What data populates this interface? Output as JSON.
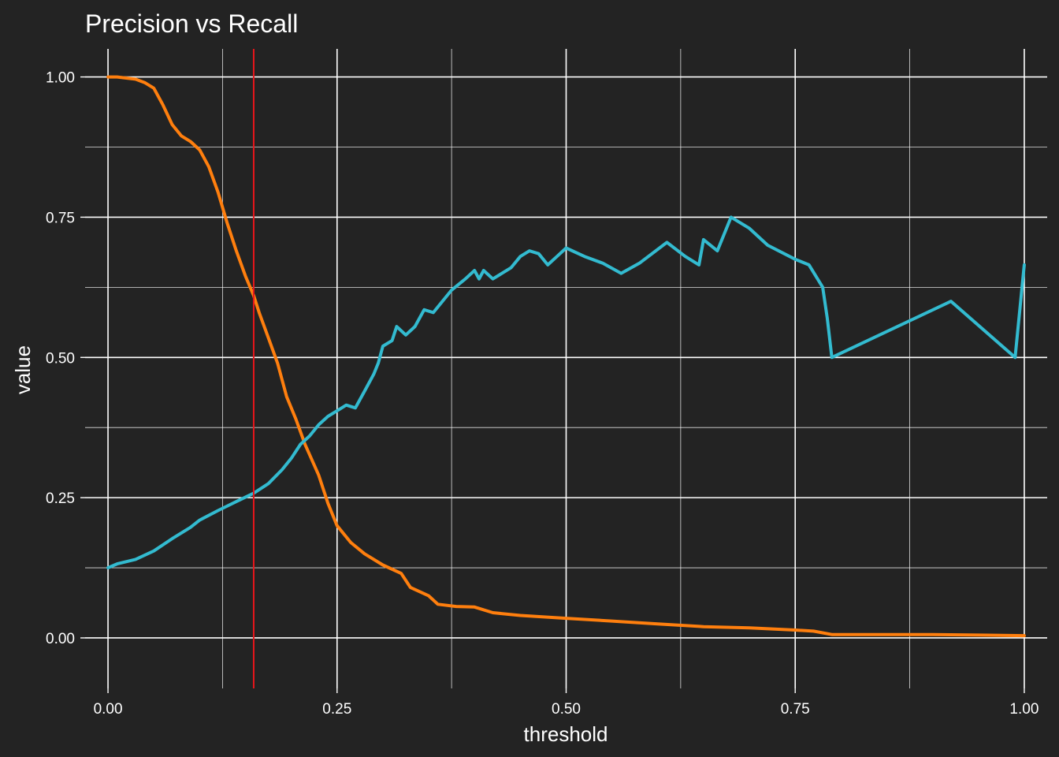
{
  "chart_data": {
    "type": "line",
    "title": "Precision vs Recall",
    "xlabel": "threshold",
    "ylabel": "value",
    "xlim": [
      -0.025,
      1.025
    ],
    "ylim": [
      -0.09,
      1.05
    ],
    "x_ticks": [
      0,
      0.25,
      0.5,
      0.75,
      1
    ],
    "x_tick_labels": [
      "0.00",
      "0.25",
      "0.50",
      "0.75",
      "1.00"
    ],
    "y_ticks": [
      0,
      0.25,
      0.5,
      0.75,
      1
    ],
    "y_tick_labels": [
      "0.00",
      "0.25",
      "0.50",
      "0.75",
      "1.00"
    ],
    "x_minor": [
      0.125,
      0.375,
      0.625,
      0.875
    ],
    "y_minor": [
      0.125,
      0.375,
      0.625,
      0.875
    ],
    "grid": true,
    "legend": "none",
    "background_color": "#232323",
    "vline": {
      "x": 0.159,
      "color": "#e8161b"
    },
    "series": [
      {
        "color": "#ff7f0e",
        "points": [
          [
            0.0,
            1.0
          ],
          [
            0.01,
            1.0
          ],
          [
            0.02,
            0.998
          ],
          [
            0.03,
            0.996
          ],
          [
            0.04,
            0.99
          ],
          [
            0.05,
            0.98
          ],
          [
            0.06,
            0.95
          ],
          [
            0.07,
            0.915
          ],
          [
            0.08,
            0.895
          ],
          [
            0.09,
            0.885
          ],
          [
            0.1,
            0.87
          ],
          [
            0.11,
            0.84
          ],
          [
            0.12,
            0.795
          ],
          [
            0.13,
            0.74
          ],
          [
            0.14,
            0.69
          ],
          [
            0.15,
            0.645
          ],
          [
            0.159,
            0.61
          ],
          [
            0.165,
            0.58
          ],
          [
            0.175,
            0.535
          ],
          [
            0.185,
            0.49
          ],
          [
            0.195,
            0.43
          ],
          [
            0.205,
            0.39
          ],
          [
            0.215,
            0.345
          ],
          [
            0.23,
            0.29
          ],
          [
            0.24,
            0.24
          ],
          [
            0.25,
            0.2
          ],
          [
            0.265,
            0.17
          ],
          [
            0.28,
            0.15
          ],
          [
            0.3,
            0.13
          ],
          [
            0.32,
            0.115
          ],
          [
            0.33,
            0.09
          ],
          [
            0.35,
            0.075
          ],
          [
            0.36,
            0.06
          ],
          [
            0.38,
            0.056
          ],
          [
            0.4,
            0.055
          ],
          [
            0.42,
            0.045
          ],
          [
            0.45,
            0.04
          ],
          [
            0.5,
            0.035
          ],
          [
            0.55,
            0.03
          ],
          [
            0.6,
            0.025
          ],
          [
            0.65,
            0.02
          ],
          [
            0.7,
            0.018
          ],
          [
            0.75,
            0.014
          ],
          [
            0.77,
            0.012
          ],
          [
            0.79,
            0.006
          ],
          [
            0.85,
            0.006
          ],
          [
            0.9,
            0.006
          ],
          [
            0.95,
            0.005
          ],
          [
            1.0,
            0.004
          ]
        ]
      },
      {
        "color": "#33bbd0",
        "points": [
          [
            0.0,
            0.125
          ],
          [
            0.01,
            0.132
          ],
          [
            0.03,
            0.14
          ],
          [
            0.05,
            0.155
          ],
          [
            0.07,
            0.177
          ],
          [
            0.09,
            0.197
          ],
          [
            0.1,
            0.21
          ],
          [
            0.12,
            0.227
          ],
          [
            0.14,
            0.243
          ],
          [
            0.159,
            0.258
          ],
          [
            0.175,
            0.275
          ],
          [
            0.19,
            0.3
          ],
          [
            0.2,
            0.32
          ],
          [
            0.21,
            0.345
          ],
          [
            0.22,
            0.36
          ],
          [
            0.23,
            0.38
          ],
          [
            0.24,
            0.395
          ],
          [
            0.25,
            0.405
          ],
          [
            0.26,
            0.415
          ],
          [
            0.27,
            0.41
          ],
          [
            0.28,
            0.44
          ],
          [
            0.29,
            0.47
          ],
          [
            0.295,
            0.49
          ],
          [
            0.3,
            0.52
          ],
          [
            0.31,
            0.53
          ],
          [
            0.315,
            0.555
          ],
          [
            0.325,
            0.54
          ],
          [
            0.335,
            0.555
          ],
          [
            0.345,
            0.585
          ],
          [
            0.355,
            0.58
          ],
          [
            0.365,
            0.6
          ],
          [
            0.375,
            0.62
          ],
          [
            0.39,
            0.64
          ],
          [
            0.4,
            0.655
          ],
          [
            0.405,
            0.64
          ],
          [
            0.41,
            0.655
          ],
          [
            0.42,
            0.64
          ],
          [
            0.43,
            0.65
          ],
          [
            0.44,
            0.66
          ],
          [
            0.45,
            0.68
          ],
          [
            0.46,
            0.69
          ],
          [
            0.47,
            0.685
          ],
          [
            0.48,
            0.665
          ],
          [
            0.49,
            0.68
          ],
          [
            0.5,
            0.695
          ],
          [
            0.52,
            0.68
          ],
          [
            0.54,
            0.668
          ],
          [
            0.56,
            0.65
          ],
          [
            0.58,
            0.668
          ],
          [
            0.61,
            0.705
          ],
          [
            0.63,
            0.68
          ],
          [
            0.645,
            0.665
          ],
          [
            0.65,
            0.71
          ],
          [
            0.665,
            0.69
          ],
          [
            0.68,
            0.75
          ],
          [
            0.7,
            0.73
          ],
          [
            0.72,
            0.7
          ],
          [
            0.75,
            0.675
          ],
          [
            0.765,
            0.665
          ],
          [
            0.78,
            0.625
          ],
          [
            0.785,
            0.57
          ],
          [
            0.79,
            0.5
          ],
          [
            0.92,
            0.6
          ],
          [
            0.99,
            0.5
          ],
          [
            1.0,
            0.665
          ]
        ]
      }
    ]
  }
}
